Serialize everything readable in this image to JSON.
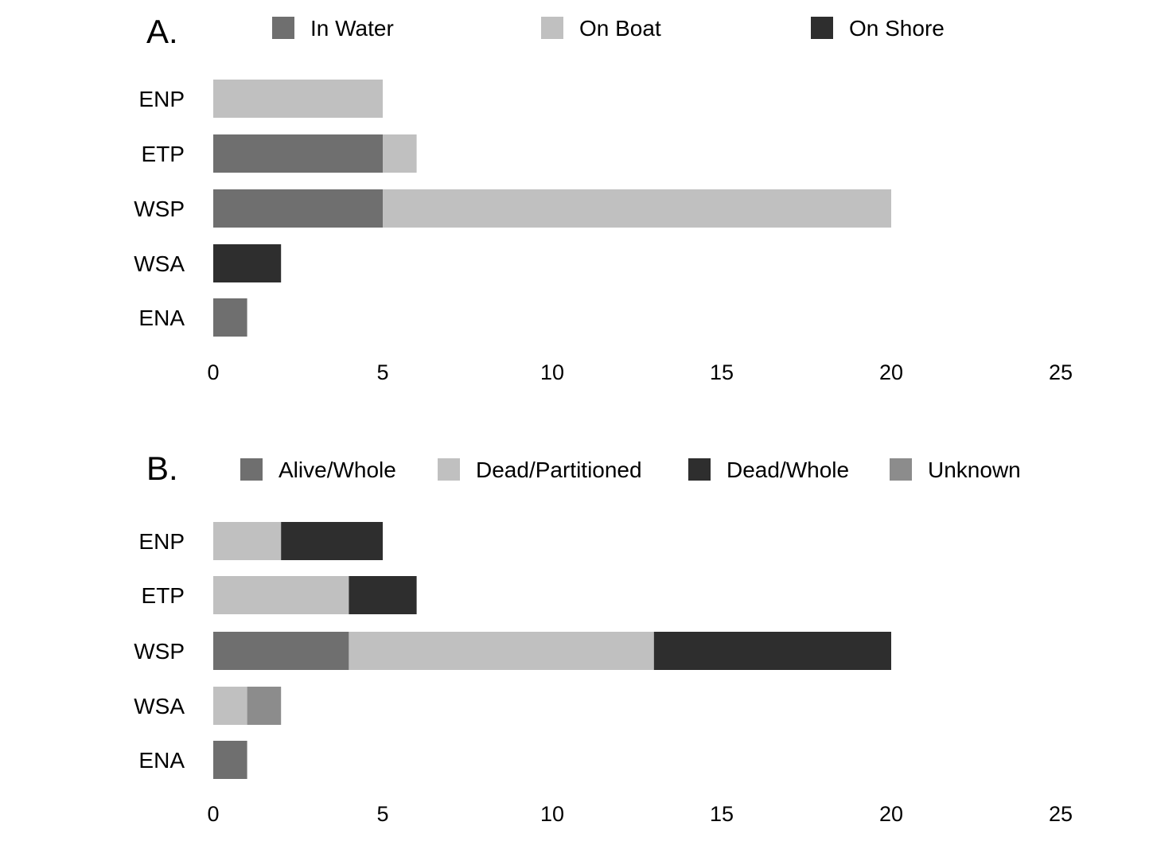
{
  "chart_data": [
    {
      "type": "bar",
      "orientation": "horizontal",
      "stacked": true,
      "panel_label": "A.",
      "categories": [
        "ENP",
        "ETP",
        "WSP",
        "WSA",
        "ENA"
      ],
      "series": [
        {
          "name": "In Water",
          "color": "#6f6f6f",
          "values": [
            0,
            5,
            5,
            0,
            1
          ]
        },
        {
          "name": "On Boat",
          "color": "#c0c0c0",
          "values": [
            5,
            1,
            15,
            0,
            0
          ]
        },
        {
          "name": "On Shore",
          "color": "#2e2e2e",
          "values": [
            0,
            0,
            0,
            2,
            0
          ]
        }
      ],
      "xlim": [
        0,
        25
      ],
      "xticks": [
        "0",
        "5",
        "10",
        "15",
        "20",
        "25"
      ],
      "grid": false,
      "legend": "top"
    },
    {
      "type": "bar",
      "orientation": "horizontal",
      "stacked": true,
      "panel_label": "B.",
      "categories": [
        "ENP",
        "ETP",
        "WSP",
        "WSA",
        "ENA"
      ],
      "series": [
        {
          "name": "Alive/Whole",
          "color": "#6f6f6f",
          "values": [
            0,
            0,
            4,
            0,
            1
          ]
        },
        {
          "name": "Dead/Partitioned",
          "color": "#c0c0c0",
          "values": [
            2,
            4,
            9,
            1,
            0
          ]
        },
        {
          "name": "Dead/Whole",
          "color": "#2e2e2e",
          "values": [
            3,
            2,
            7,
            0,
            0
          ]
        },
        {
          "name": "Unknown",
          "color": "#8c8c8c",
          "values": [
            0,
            0,
            0,
            1,
            0
          ]
        }
      ],
      "xlim": [
        0,
        25
      ],
      "xticks": [
        "0",
        "5",
        "10",
        "15",
        "20",
        "25"
      ],
      "grid": false,
      "legend": "top"
    }
  ]
}
